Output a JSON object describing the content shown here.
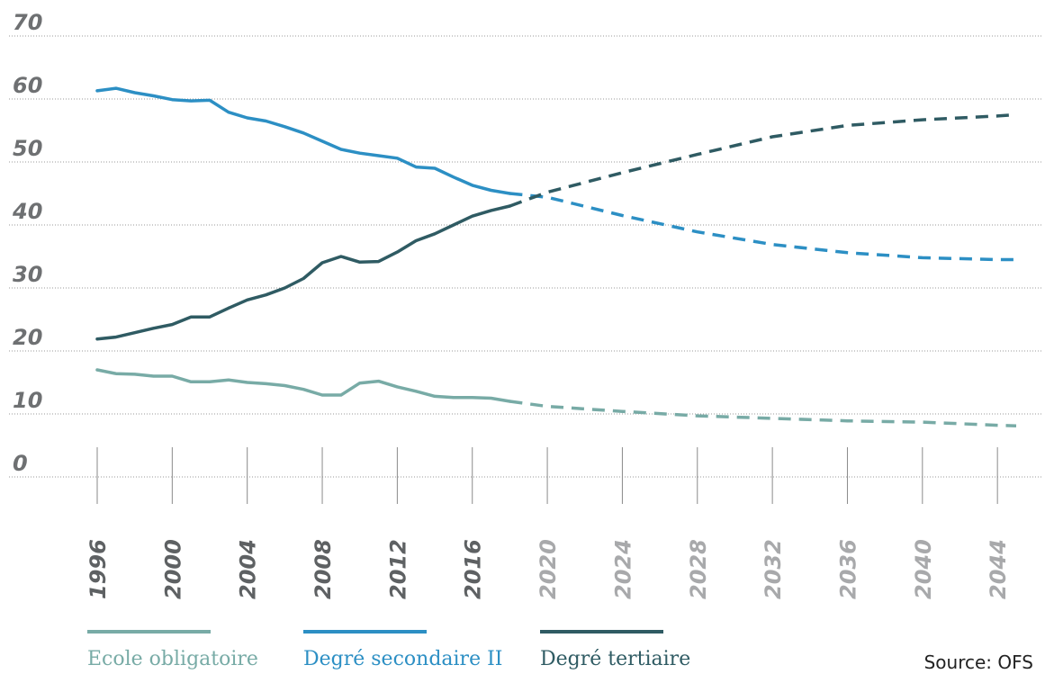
{
  "chart_data": {
    "type": "line",
    "ylim": [
      0,
      70
    ],
    "yticks": [
      "0",
      "10",
      "20",
      "30",
      "40",
      "50",
      "60",
      "70"
    ],
    "xticks": [
      "1996",
      "2000",
      "2004",
      "2008",
      "2012",
      "2016",
      "2020",
      "2024",
      "2028",
      "2032",
      "2036",
      "2040",
      "2044"
    ],
    "xlim": [
      1996,
      2045
    ],
    "actual_until": 2018,
    "grid": true,
    "legend_position": "bottom",
    "series": [
      {
        "name": "Ecole obligatoire",
        "color": "#78aba6",
        "x": [
          1996,
          1997,
          1998,
          1999,
          2000,
          2001,
          2002,
          2003,
          2004,
          2005,
          2006,
          2007,
          2008,
          2009,
          2010,
          2011,
          2012,
          2013,
          2014,
          2015,
          2016,
          2017,
          2018,
          2020,
          2024,
          2028,
          2032,
          2036,
          2040,
          2044,
          2045
        ],
        "y": [
          17.0,
          16.4,
          16.3,
          16.0,
          16.0,
          15.1,
          15.1,
          15.4,
          15.0,
          14.8,
          14.5,
          13.9,
          13.0,
          13.0,
          14.9,
          15.2,
          14.3,
          13.6,
          12.8,
          12.6,
          12.6,
          12.5,
          12.0,
          11.2,
          10.4,
          9.7,
          9.3,
          8.9,
          8.7,
          8.2,
          8.1
        ]
      },
      {
        "name": "Degré secondaire II",
        "color": "#2c8fc4",
        "x": [
          1996,
          1997,
          1998,
          1999,
          2000,
          2001,
          2002,
          2003,
          2004,
          2005,
          2006,
          2007,
          2008,
          2009,
          2010,
          2011,
          2012,
          2013,
          2014,
          2015,
          2016,
          2017,
          2018,
          2020,
          2024,
          2028,
          2032,
          2036,
          2040,
          2044,
          2045
        ],
        "y": [
          61.3,
          61.7,
          61.0,
          60.5,
          59.9,
          59.7,
          59.8,
          57.9,
          57.0,
          56.5,
          55.6,
          54.6,
          53.3,
          52.0,
          51.4,
          51.0,
          50.6,
          49.2,
          49.0,
          47.6,
          46.3,
          45.5,
          45.0,
          44.4,
          41.5,
          38.9,
          36.9,
          35.6,
          34.8,
          34.5,
          34.5
        ]
      },
      {
        "name": "Degré tertiaire",
        "color": "#2f5b63",
        "x": [
          1996,
          1997,
          1998,
          1999,
          2000,
          2001,
          2002,
          2003,
          2004,
          2005,
          2006,
          2007,
          2008,
          2009,
          2010,
          2011,
          2012,
          2013,
          2014,
          2015,
          2016,
          2017,
          2018,
          2020,
          2024,
          2028,
          2032,
          2036,
          2040,
          2044,
          2045
        ],
        "y": [
          21.9,
          22.2,
          22.9,
          23.6,
          24.2,
          25.4,
          25.4,
          26.8,
          28.1,
          28.9,
          30.0,
          31.5,
          34.0,
          35.0,
          34.1,
          34.2,
          35.7,
          37.5,
          38.6,
          40.0,
          41.4,
          42.3,
          43.0,
          45.2,
          48.3,
          51.2,
          54.0,
          55.8,
          56.7,
          57.3,
          57.5
        ]
      }
    ],
    "source": "Source: OFS"
  }
}
